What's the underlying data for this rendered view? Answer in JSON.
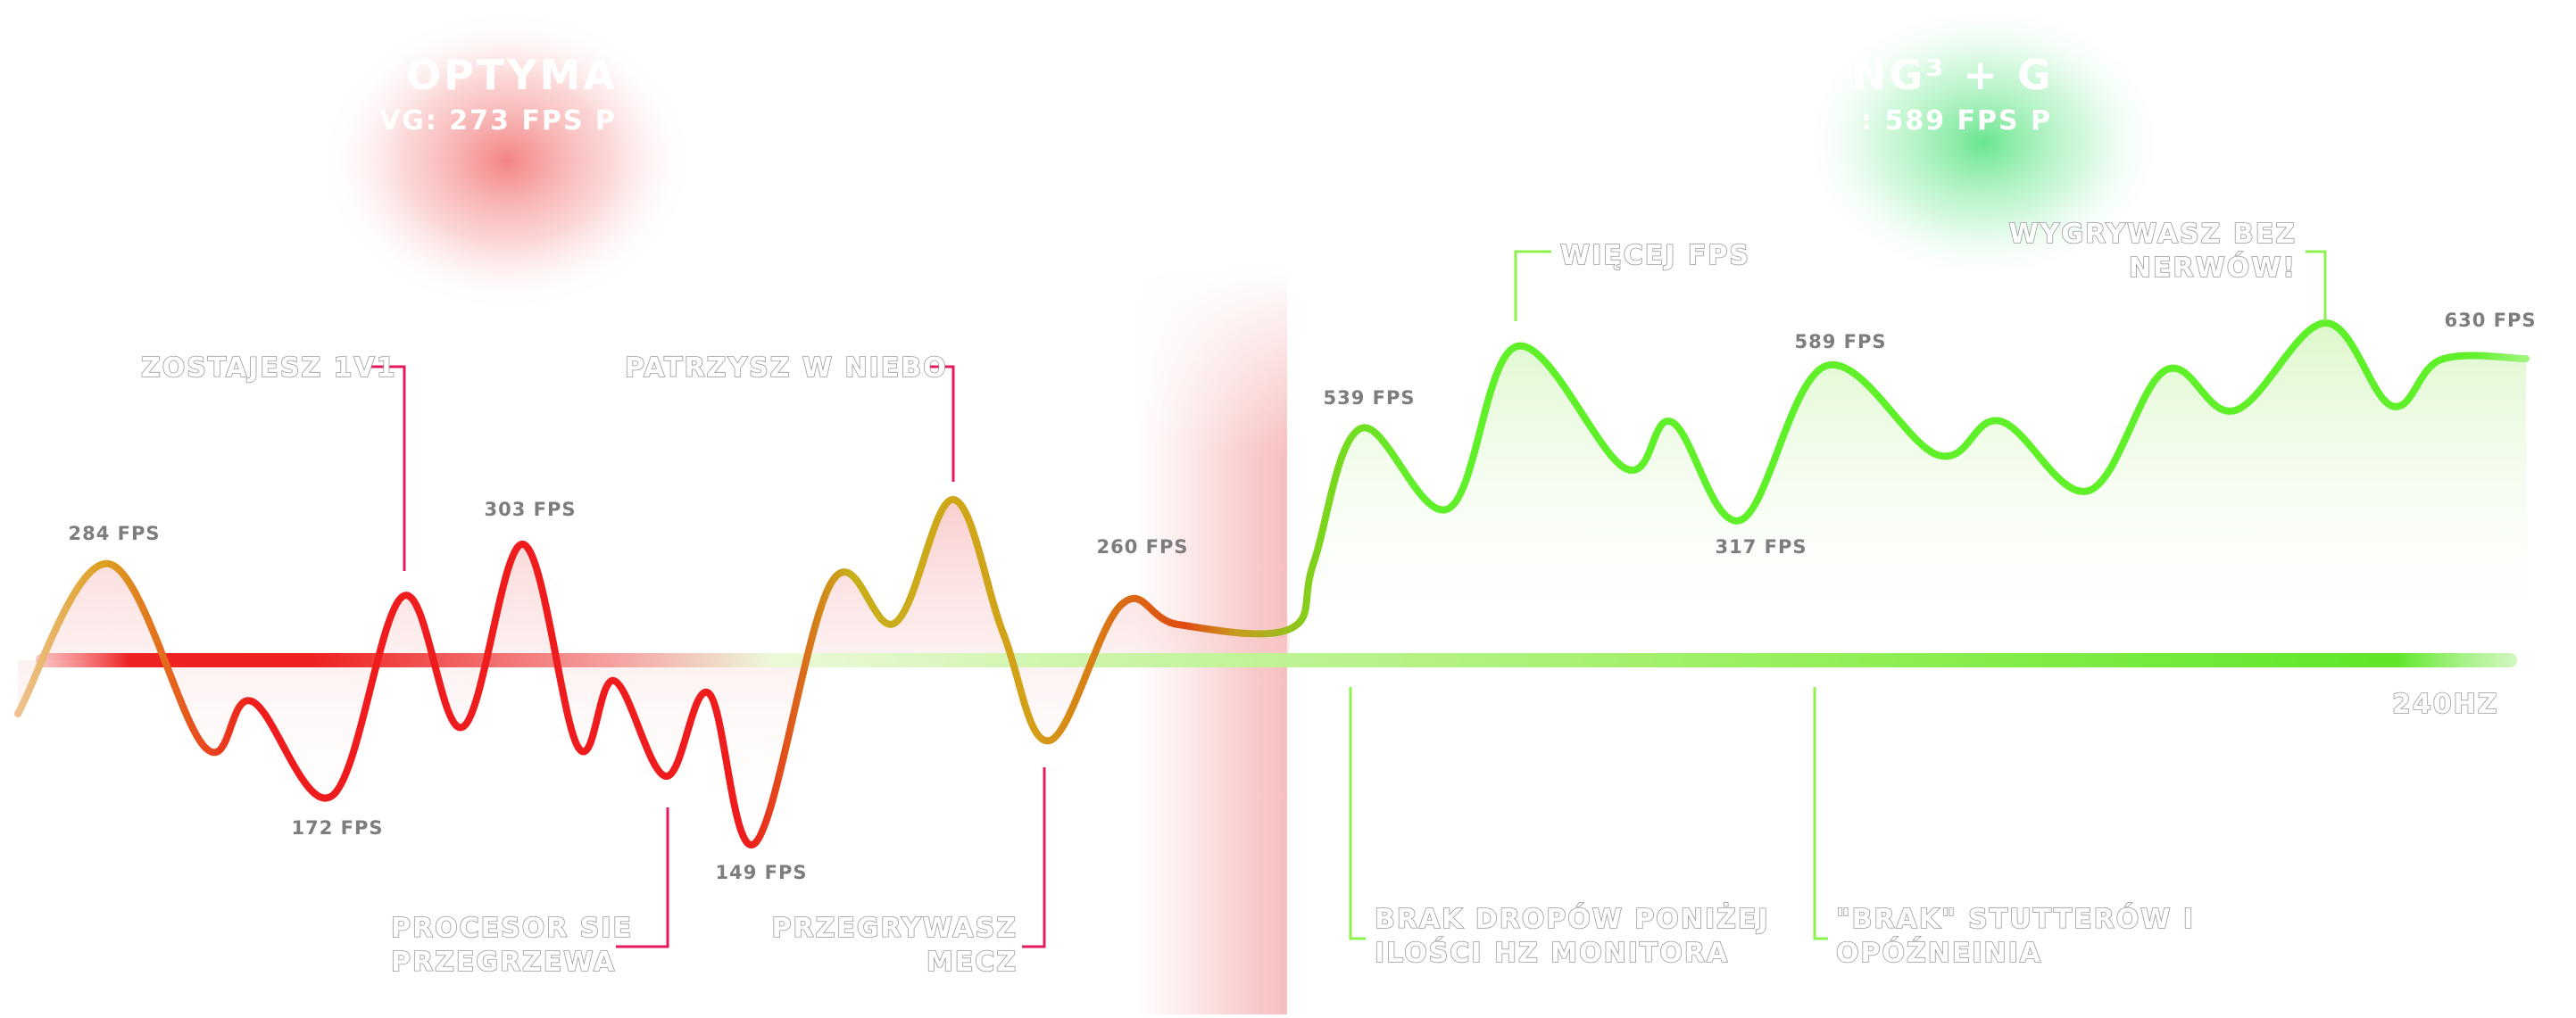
{
  "headers": {
    "left_title": "OPTYMA",
    "left_sub": "VG: 273 FPS P",
    "right_title": "NG³ + G",
    "right_sub": ": 589 FPS P"
  },
  "threshold_label": "240HZ",
  "colors": {
    "bad": "#ee1c1c",
    "mid": "#d8a81a",
    "good": "#5ff02a",
    "label_grey": "#7d7d7d",
    "annot_line_bad": "#e6195c",
    "annot_line_good": "#8ef04e"
  },
  "chart_data": {
    "type": "line",
    "xlabel": "",
    "ylabel": "",
    "threshold_fps": 240,
    "sections": [
      {
        "name": "left",
        "colors": "red-to-yellow"
      },
      {
        "name": "right",
        "colors": "green"
      }
    ],
    "fps_labels": [
      {
        "text": "284 FPS",
        "value": 284
      },
      {
        "text": "172 FPS",
        "value": 172
      },
      {
        "text": "303 FPS",
        "value": 303
      },
      {
        "text": "149 FPS",
        "value": 149
      },
      {
        "text": "260 FPS",
        "value": 260
      },
      {
        "text": "539 FPS",
        "value": 539
      },
      {
        "text": "589 FPS",
        "value": 589
      },
      {
        "text": "317 FPS",
        "value": 317
      },
      {
        "text": "630 FPS",
        "value": 630
      }
    ],
    "annotations": [
      {
        "lines": [
          "ZOSTAJESZ 1V1"
        ]
      },
      {
        "lines": [
          "PATRZYSZ W NIEBO"
        ]
      },
      {
        "lines": [
          "PROCESOR SIE",
          "PRZEGRZEWA"
        ]
      },
      {
        "lines": [
          "PRZEGRYWASZ",
          "MECZ"
        ]
      },
      {
        "lines": [
          "WIĘCEJ FPS"
        ]
      },
      {
        "lines": [
          "WYGRYWASZ BEZ",
          "NERWÓW!"
        ]
      },
      {
        "lines": [
          "BRAK DROPÓW PONIŻEJ",
          "ILOŚCI HZ MONITORA"
        ]
      },
      {
        "lines": [
          "\"BRAK\" STUTTERÓW I",
          "OPÓŹNEINIA"
        ]
      }
    ]
  }
}
